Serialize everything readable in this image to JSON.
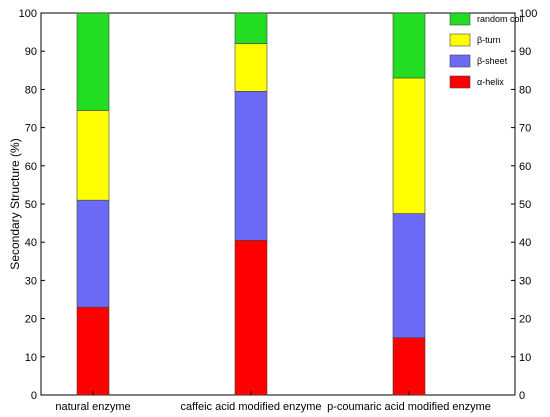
{
  "chart_data": {
    "type": "bar",
    "stacked": true,
    "categories": [
      "natural enzyme",
      "caffeic acid modified enzyme",
      "p-coumaric acid modified enzyme"
    ],
    "series": [
      {
        "name": "α-helix",
        "color": "#ff0000",
        "values": [
          23.0,
          40.5,
          15.0
        ]
      },
      {
        "name": "β-sheet",
        "color": "#6a6af7",
        "values": [
          28.0,
          39.0,
          32.5
        ]
      },
      {
        "name": "β-turn",
        "color": "#ffff00",
        "values": [
          23.5,
          12.5,
          35.5
        ]
      },
      {
        "name": "random coil",
        "color": "#22dd22",
        "values": [
          25.5,
          8.0,
          17.0
        ]
      }
    ],
    "legend_order": [
      "random coil",
      "β-turn",
      "β-sheet",
      "α-helix"
    ],
    "legend_position": "top-right",
    "ylabel": "Secondary Structure (%)",
    "xlabel": "",
    "ylim": [
      0,
      100
    ],
    "yticks": [
      "0",
      "10",
      "20",
      "30",
      "40",
      "50",
      "60",
      "70",
      "80",
      "90",
      "100"
    ],
    "right_axis_mirrored": true,
    "grid": false
  }
}
